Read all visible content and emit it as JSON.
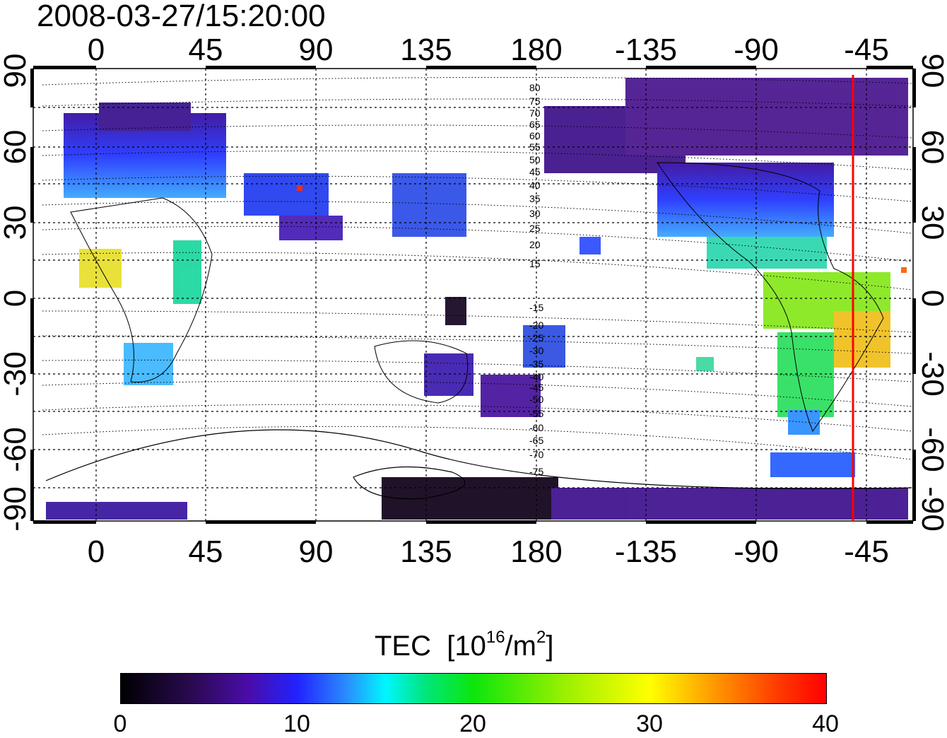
{
  "timestamp": "2008-03-27/15:20:00",
  "lon_ticks": [
    "0",
    "45",
    "90",
    "135",
    "180",
    "-135",
    "-90",
    "-45"
  ],
  "lat_ticks": [
    "90",
    "60",
    "30",
    "0",
    "-30",
    "-60",
    "-90"
  ],
  "contour_labels_north": [
    "80",
    "75",
    "70",
    "65",
    "60",
    "55",
    "50",
    "45",
    "40",
    "35",
    "30",
    "25",
    "20",
    "15"
  ],
  "contour_labels_south": [
    "-15",
    "-20",
    "-25",
    "-30",
    "-35",
    "-40",
    "-45",
    "-50",
    "-55",
    "-60",
    "-65",
    "-70",
    "-75"
  ],
  "colorbar": {
    "title": "TEC",
    "unit_prefix": "[10",
    "unit_exp": "16",
    "unit_mid": "/m",
    "unit_exp2": "2",
    "unit_suffix": "]",
    "ticks": [
      "0",
      "10",
      "20",
      "30",
      "40"
    ]
  },
  "marker_line_lon": -50,
  "colors": {
    "marker": "#ff0000",
    "low": "#3a1280",
    "mid": "#1a3cff",
    "high": "#ffdd00"
  }
}
